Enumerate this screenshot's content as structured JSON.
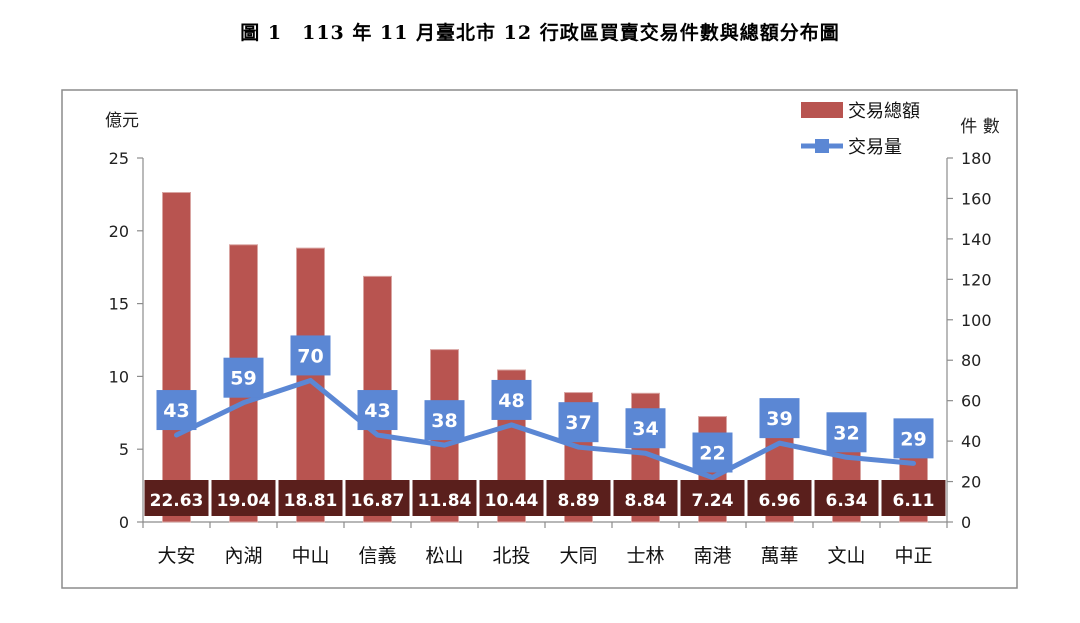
{
  "chart_data": {
    "title": "圖 1　113 年 11 月臺北市 12 行政區買賣交易件數與總額分布圖",
    "type": "bar",
    "categories": [
      "大安",
      "內湖",
      "中山",
      "信義",
      "松山",
      "北投",
      "大同",
      "士林",
      "南港",
      "萬華",
      "文山",
      "中正"
    ],
    "series": [
      {
        "name": "交易總額",
        "type": "bar",
        "axis": "left",
        "color": "#b85450",
        "values": [
          22.63,
          19.04,
          18.81,
          16.87,
          11.84,
          10.44,
          8.89,
          8.84,
          7.24,
          6.96,
          6.34,
          6.11
        ]
      },
      {
        "name": "交易量",
        "type": "line",
        "axis": "right",
        "color": "#5b87d4",
        "values": [
          43,
          59,
          70,
          43,
          38,
          48,
          37,
          34,
          22,
          39,
          32,
          29
        ]
      }
    ],
    "y_left": {
      "label": "億元",
      "ticks": [
        0,
        5,
        10,
        15,
        20,
        25
      ],
      "ylim": [
        0,
        25
      ]
    },
    "y_right": {
      "label": "件 數",
      "ticks": [
        0,
        20,
        40,
        60,
        80,
        100,
        120,
        140,
        160,
        180
      ],
      "ylim": [
        0,
        180
      ]
    },
    "legend_position": "top-right",
    "grid": false
  }
}
